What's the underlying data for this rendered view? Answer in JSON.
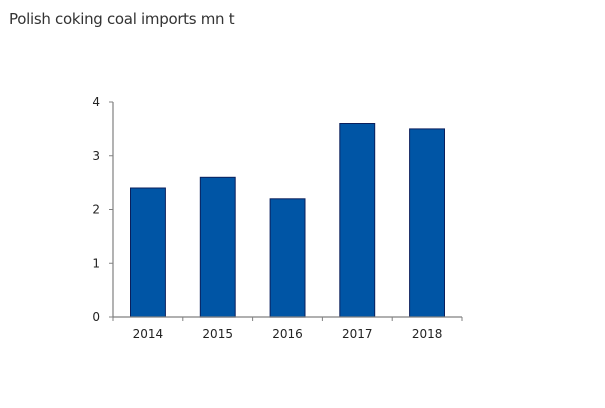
{
  "title": "Polish coking coal imports mn t",
  "chart_data": {
    "type": "bar",
    "title": "Polish coking coal imports mn t",
    "xlabel": "",
    "ylabel": "",
    "categories": [
      "2014",
      "2015",
      "2016",
      "2017",
      "2018"
    ],
    "values": [
      2.4,
      2.6,
      2.2,
      3.6,
      3.5
    ],
    "ylim": [
      0,
      4
    ],
    "yticks": [
      "0",
      "1",
      "2",
      "3",
      "4"
    ],
    "grid": false,
    "legend": "none",
    "bar_color": "#0055A5",
    "bar_edge_color": "#0A1F5C",
    "axis_color": "#808080"
  }
}
